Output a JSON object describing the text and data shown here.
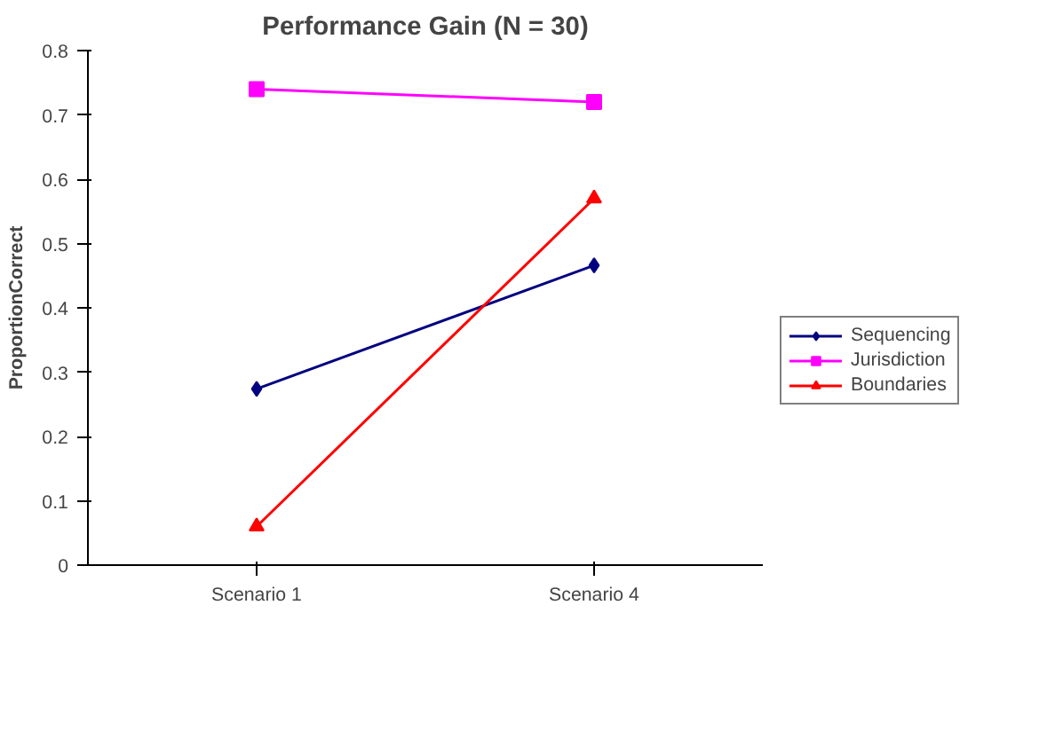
{
  "chart_data": {
    "type": "line",
    "title": "Performance Gain (N = 30)",
    "ylabel": "ProportionCorrect",
    "categories": [
      "Scenario 1",
      "Scenario 4"
    ],
    "ylim": [
      0,
      0.8
    ],
    "yticks": [
      0,
      0.1,
      0.2,
      0.3,
      0.4,
      0.5,
      0.6,
      0.7,
      0.8
    ],
    "grid": false,
    "legend": "right",
    "series": [
      {
        "name": "Sequencing",
        "color": "#000080",
        "marker": "diamond",
        "values": [
          0.274,
          0.466
        ]
      },
      {
        "name": "Jurisdiction",
        "color": "#ff00ff",
        "marker": "square",
        "values": [
          0.74,
          0.72
        ]
      },
      {
        "name": "Boundaries",
        "color": "#ff0000",
        "marker": "triangle",
        "values": [
          0.06,
          0.57
        ]
      }
    ]
  }
}
